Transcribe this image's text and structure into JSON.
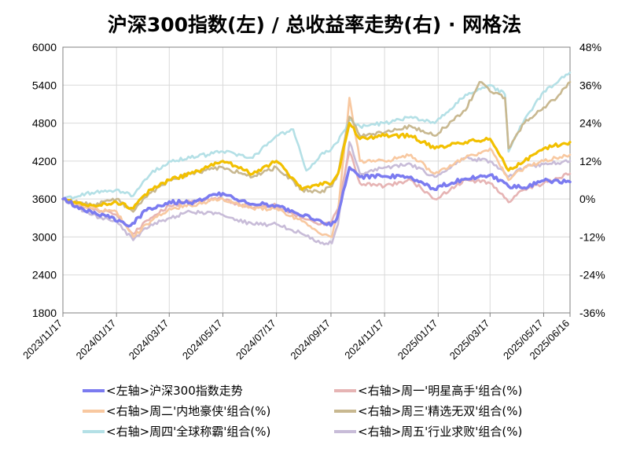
{
  "chart_data": {
    "type": "line",
    "title": "沪深300指数(左)  /  总收益率走势(右) · 网格法",
    "x_ticks": [
      "2023/11/17",
      "2024/01/17",
      "2024/03/17",
      "2024/05/17",
      "2024/07/17",
      "2024/09/17",
      "2024/11/17",
      "2025/01/17",
      "2025/03/17",
      "2025/05/17",
      "2025/06/16"
    ],
    "x_tick_colors": [
      "#000000",
      "#000000",
      "#000000",
      "#000000",
      "#000000",
      "#000000",
      "#000000",
      "#000000",
      "#000000",
      "#000000",
      "#ff0000"
    ],
    "x_range": [
      "2023/11/17",
      "2025/06/16"
    ],
    "y_left": {
      "range": [
        1800,
        6000
      ],
      "ticks": [
        "6000",
        "5400",
        "4800",
        "4200",
        "3600",
        "3000",
        "2400",
        "1800"
      ]
    },
    "y_right": {
      "range": [
        -36,
        48
      ],
      "ticks": [
        "48%",
        "36%",
        "24%",
        "12%",
        "0%",
        "-12%",
        "-24%",
        "-36%"
      ],
      "tick_colors": [
        "#000000",
        "#000000",
        "#000000",
        "#000000",
        "#000000",
        "#00cc00",
        "#00cc00",
        "#00cc00"
      ]
    },
    "grid": true,
    "legend_position": "bottom",
    "series": [
      {
        "name": "<左轴>沪深300指数走势",
        "axis": "left",
        "color": "#7b7bf0",
        "points": [
          [
            "2023/11/17",
            3600
          ],
          [
            "2023/12/10",
            3440
          ],
          [
            "2024/01/05",
            3330
          ],
          [
            "2024/02/02",
            3180
          ],
          [
            "2024/02/20",
            3420
          ],
          [
            "2024/03/17",
            3560
          ],
          [
            "2024/04/10",
            3540
          ],
          [
            "2024/05/17",
            3690
          ],
          [
            "2024/06/15",
            3530
          ],
          [
            "2024/07/17",
            3500
          ],
          [
            "2024/08/10",
            3370
          ],
          [
            "2024/09/05",
            3260
          ],
          [
            "2024/09/17",
            3180
          ],
          [
            "2024/09/24",
            3300
          ],
          [
            "2024/10/08",
            4100
          ],
          [
            "2024/10/20",
            3950
          ],
          [
            "2024/11/17",
            3960
          ],
          [
            "2024/12/17",
            3950
          ],
          [
            "2025/01/13",
            3750
          ],
          [
            "2025/01/17",
            3800
          ],
          [
            "2025/02/17",
            3920
          ],
          [
            "2025/03/17",
            3980
          ],
          [
            "2025/04/07",
            3800
          ],
          [
            "2025/04/25",
            3780
          ],
          [
            "2025/05/17",
            3890
          ],
          [
            "2025/06/16",
            3870
          ]
        ]
      },
      {
        "name": "<右轴>周一'明星高手'组合(%)",
        "axis": "right",
        "color": "#e6b4b4",
        "points": [
          [
            "2023/11/17",
            0
          ],
          [
            "2023/12/20",
            -3
          ],
          [
            "2024/01/17",
            -5
          ],
          [
            "2024/02/05",
            -11
          ],
          [
            "2024/02/25",
            -6
          ],
          [
            "2024/03/17",
            -2
          ],
          [
            "2024/04/10",
            -1
          ],
          [
            "2024/05/17",
            0
          ],
          [
            "2024/06/20",
            -3
          ],
          [
            "2024/07/17",
            -2
          ],
          [
            "2024/08/15",
            -6
          ],
          [
            "2024/09/05",
            -8
          ],
          [
            "2024/09/18",
            -7
          ],
          [
            "2024/09/25",
            -3
          ],
          [
            "2024/10/08",
            15
          ],
          [
            "2024/10/20",
            5
          ],
          [
            "2024/11/17",
            4
          ],
          [
            "2024/12/17",
            6
          ],
          [
            "2025/01/13",
            0
          ],
          [
            "2025/02/17",
            6
          ],
          [
            "2025/03/17",
            5
          ],
          [
            "2025/04/07",
            -1
          ],
          [
            "2025/04/25",
            3
          ],
          [
            "2025/05/17",
            5
          ],
          [
            "2025/06/16",
            8
          ]
        ]
      },
      {
        "name": "<右轴>周二'内地豪侠'组合(%)",
        "axis": "right",
        "color": "#f8c8a0",
        "points": [
          [
            "2023/11/17",
            0
          ],
          [
            "2023/12/20",
            -3
          ],
          [
            "2024/01/17",
            -4
          ],
          [
            "2024/02/05",
            -12
          ],
          [
            "2024/02/25",
            -7
          ],
          [
            "2024/03/17",
            -3
          ],
          [
            "2024/04/10",
            -2
          ],
          [
            "2024/05/17",
            0
          ],
          [
            "2024/06/20",
            -3
          ],
          [
            "2024/07/17",
            -3
          ],
          [
            "2024/08/15",
            -7
          ],
          [
            "2024/09/05",
            -11
          ],
          [
            "2024/09/18",
            -12
          ],
          [
            "2024/09/25",
            -4
          ],
          [
            "2024/10/08",
            32
          ],
          [
            "2024/10/20",
            12
          ],
          [
            "2024/11/17",
            12
          ],
          [
            "2024/12/17",
            14
          ],
          [
            "2025/01/13",
            8
          ],
          [
            "2025/02/17",
            13
          ],
          [
            "2025/03/17",
            16
          ],
          [
            "2025/04/07",
            6
          ],
          [
            "2025/04/25",
            10
          ],
          [
            "2025/05/17",
            12
          ],
          [
            "2025/06/16",
            14
          ]
        ]
      },
      {
        "name": "<右轴>周三'精选无双'组合(%)",
        "axis": "right",
        "color": "#c8b890",
        "points": [
          [
            "2023/11/17",
            0
          ],
          [
            "2023/12/20",
            -2
          ],
          [
            "2024/01/17",
            0
          ],
          [
            "2024/02/05",
            -4
          ],
          [
            "2024/02/25",
            2
          ],
          [
            "2024/03/17",
            6
          ],
          [
            "2024/04/10",
            8
          ],
          [
            "2024/05/17",
            10
          ],
          [
            "2024/06/20",
            7
          ],
          [
            "2024/07/17",
            10
          ],
          [
            "2024/08/15",
            3
          ],
          [
            "2024/09/05",
            2
          ],
          [
            "2024/09/18",
            4
          ],
          [
            "2024/09/25",
            8
          ],
          [
            "2024/10/08",
            26
          ],
          [
            "2024/10/20",
            20
          ],
          [
            "2024/11/17",
            21
          ],
          [
            "2024/12/17",
            23
          ],
          [
            "2025/01/13",
            20
          ],
          [
            "2025/02/17",
            28
          ],
          [
            "2025/03/05",
            37
          ],
          [
            "2025/03/17",
            34
          ],
          [
            "2025/04/03",
            32
          ],
          [
            "2025/04/07",
            16
          ],
          [
            "2025/04/25",
            24
          ],
          [
            "2025/05/17",
            29
          ],
          [
            "2025/06/01",
            32
          ],
          [
            "2025/06/16",
            37
          ]
        ]
      },
      {
        "name": "<右轴>周四'全球称霸'组合(%)",
        "axis": "right",
        "color": "#b4e0e6",
        "points": [
          [
            "2023/11/17",
            0
          ],
          [
            "2023/12/20",
            2
          ],
          [
            "2024/01/17",
            3
          ],
          [
            "2024/02/05",
            1
          ],
          [
            "2024/02/25",
            8
          ],
          [
            "2024/03/17",
            12
          ],
          [
            "2024/04/10",
            13
          ],
          [
            "2024/05/17",
            15
          ],
          [
            "2024/06/20",
            13
          ],
          [
            "2024/07/17",
            20
          ],
          [
            "2024/08/05",
            22
          ],
          [
            "2024/08/20",
            9
          ],
          [
            "2024/09/05",
            14
          ],
          [
            "2024/09/18",
            16
          ],
          [
            "2024/09/25",
            18
          ],
          [
            "2024/10/08",
            25
          ],
          [
            "2024/10/20",
            23
          ],
          [
            "2024/11/17",
            24
          ],
          [
            "2024/12/17",
            26
          ],
          [
            "2025/01/13",
            24
          ],
          [
            "2025/02/17",
            33
          ],
          [
            "2025/03/17",
            36
          ],
          [
            "2025/04/03",
            33
          ],
          [
            "2025/04/07",
            15
          ],
          [
            "2025/04/25",
            25
          ],
          [
            "2025/05/17",
            34
          ],
          [
            "2025/06/16",
            40
          ]
        ]
      },
      {
        "name": "<右轴>周五'行业求败'组合(%)",
        "axis": "right",
        "color": "#c8bcd8",
        "points": [
          [
            "2023/11/17",
            0
          ],
          [
            "2023/12/20",
            -5
          ],
          [
            "2024/01/17",
            -7
          ],
          [
            "2024/02/05",
            -13
          ],
          [
            "2024/02/25",
            -8
          ],
          [
            "2024/03/17",
            -6
          ],
          [
            "2024/04/10",
            -4
          ],
          [
            "2024/05/17",
            -5
          ],
          [
            "2024/06/20",
            -8
          ],
          [
            "2024/07/17",
            -8
          ],
          [
            "2024/08/15",
            -11
          ],
          [
            "2024/09/05",
            -14
          ],
          [
            "2024/09/18",
            -14
          ],
          [
            "2024/09/25",
            -8
          ],
          [
            "2024/10/08",
            18
          ],
          [
            "2024/10/20",
            8
          ],
          [
            "2024/11/17",
            10
          ],
          [
            "2024/12/17",
            11
          ],
          [
            "2025/01/13",
            7
          ],
          [
            "2025/02/17",
            13
          ],
          [
            "2025/03/17",
            12
          ],
          [
            "2025/04/07",
            7
          ],
          [
            "2025/04/25",
            10
          ],
          [
            "2025/05/17",
            11
          ],
          [
            "2025/06/16",
            12
          ]
        ]
      },
      {
        "name": "",
        "axis": "right",
        "color": "#f2c000",
        "points": [
          [
            "2023/11/17",
            0
          ],
          [
            "2023/12/20",
            -2
          ],
          [
            "2024/01/17",
            -1
          ],
          [
            "2024/02/05",
            -3
          ],
          [
            "2024/02/25",
            3
          ],
          [
            "2024/03/17",
            6
          ],
          [
            "2024/04/10",
            8
          ],
          [
            "2024/05/17",
            12
          ],
          [
            "2024/06/20",
            8
          ],
          [
            "2024/07/17",
            12
          ],
          [
            "2024/08/15",
            3
          ],
          [
            "2024/09/05",
            5
          ],
          [
            "2024/09/18",
            5
          ],
          [
            "2024/09/25",
            8
          ],
          [
            "2024/10/08",
            24
          ],
          [
            "2024/10/20",
            19
          ],
          [
            "2024/11/17",
            20
          ],
          [
            "2024/12/17",
            20
          ],
          [
            "2025/01/13",
            16
          ],
          [
            "2025/02/17",
            18
          ],
          [
            "2025/03/17",
            19
          ],
          [
            "2025/04/07",
            9
          ],
          [
            "2025/04/25",
            12
          ],
          [
            "2025/05/17",
            16
          ],
          [
            "2025/06/16",
            18
          ]
        ]
      }
    ]
  }
}
